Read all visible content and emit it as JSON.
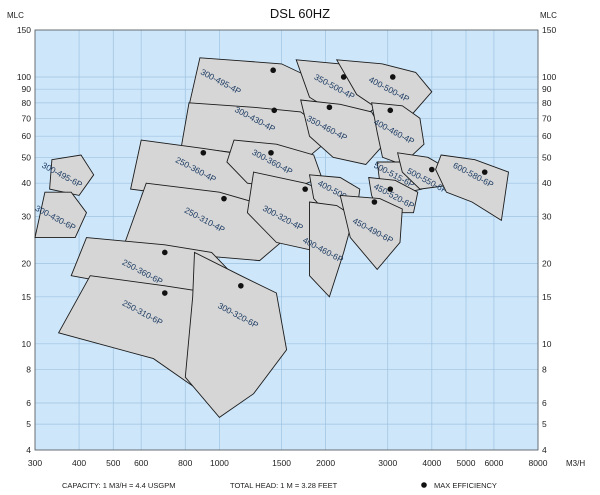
{
  "chart_data": {
    "type": "scatter",
    "title": "DSL 60HZ",
    "y_unit": "MLC",
    "x_unit": "M3/H",
    "x_scale": "log",
    "y_scale": "log",
    "xlim": [
      300,
      8000
    ],
    "ylim": [
      4,
      150
    ],
    "x_ticks": [
      300,
      400,
      500,
      600,
      800,
      1000,
      1500,
      2000,
      3000,
      4000,
      5000,
      6000,
      8000
    ],
    "y_ticks": [
      4,
      5,
      6,
      8,
      10,
      15,
      20,
      30,
      40,
      50,
      60,
      70,
      80,
      90,
      100,
      150
    ],
    "background": "#cde6fa",
    "zone_color": "#d6d6d6",
    "label_color": "#1c3b63",
    "zones": [
      {
        "label": "300-495-4P",
        "max_efficiency": [
          1420,
          106
        ],
        "label_at": [
          1000,
          94
        ],
        "poly": [
          [
            880,
            118
          ],
          [
            1150,
            115
          ],
          [
            1500,
            112
          ],
          [
            1950,
            95
          ],
          [
            2050,
            78
          ],
          [
            1750,
            71
          ],
          [
            1250,
            72
          ],
          [
            820,
            78
          ]
        ]
      },
      {
        "label": "350-500-4P",
        "max_efficiency": [
          2250,
          100
        ],
        "label_at": [
          2100,
          90
        ],
        "poly": [
          [
            1650,
            116
          ],
          [
            2200,
            112
          ],
          [
            2800,
            104
          ],
          [
            3100,
            86
          ],
          [
            2600,
            72
          ],
          [
            2100,
            74
          ],
          [
            1800,
            84
          ]
        ]
      },
      {
        "label": "400-500-4P",
        "max_efficiency": [
          3100,
          100
        ],
        "label_at": [
          3000,
          88
        ],
        "poly": [
          [
            2150,
            116
          ],
          [
            2900,
            112
          ],
          [
            3600,
            104
          ],
          [
            4000,
            88
          ],
          [
            3500,
            72
          ],
          [
            2900,
            74
          ],
          [
            2450,
            86
          ]
        ]
      },
      {
        "label": "300-430-4P",
        "max_efficiency": [
          1430,
          75
        ],
        "label_at": [
          1250,
          68
        ],
        "poly": [
          [
            820,
            80
          ],
          [
            1250,
            77
          ],
          [
            1700,
            74
          ],
          [
            2100,
            60
          ],
          [
            1750,
            49
          ],
          [
            1250,
            51
          ],
          [
            780,
            55
          ]
        ]
      },
      {
        "label": "350-460-4P",
        "max_efficiency": [
          2050,
          77
        ],
        "label_at": [
          2000,
          63
        ],
        "poly": [
          [
            1700,
            82
          ],
          [
            2200,
            79
          ],
          [
            2700,
            74
          ],
          [
            3000,
            58
          ],
          [
            2600,
            47
          ],
          [
            2100,
            50
          ],
          [
            1800,
            60
          ]
        ]
      },
      {
        "label": "400-460-4P",
        "max_efficiency": [
          3050,
          75
        ],
        "label_at": [
          3100,
          61
        ],
        "poly": [
          [
            2700,
            80
          ],
          [
            3300,
            78
          ],
          [
            3700,
            70
          ],
          [
            3800,
            56
          ],
          [
            3300,
            47
          ],
          [
            2900,
            50
          ],
          [
            2800,
            62
          ]
        ]
      },
      {
        "label": "300-495-6P",
        "max_efficiency": null,
        "label_at": [
          355,
          42
        ],
        "poly": [
          [
            335,
            49
          ],
          [
            405,
            51
          ],
          [
            440,
            43
          ],
          [
            400,
            36
          ],
          [
            330,
            38
          ]
        ]
      },
      {
        "label": "250-360-4P",
        "max_efficiency": [
          900,
          52
        ],
        "label_at": [
          850,
          44
        ],
        "poly": [
          [
            600,
            58
          ],
          [
            900,
            54
          ],
          [
            1200,
            51
          ],
          [
            1450,
            42
          ],
          [
            1250,
            34
          ],
          [
            900,
            35
          ],
          [
            560,
            38
          ]
        ]
      },
      {
        "label": "300-360-4P",
        "max_efficiency": [
          1400,
          52
        ],
        "label_at": [
          1400,
          47
        ],
        "poly": [
          [
            1100,
            58
          ],
          [
            1450,
            56
          ],
          [
            1850,
            51
          ],
          [
            1950,
            42
          ],
          [
            1600,
            38
          ],
          [
            1200,
            40
          ],
          [
            1050,
            48
          ]
        ]
      },
      {
        "label": "300-430-6P",
        "max_efficiency": null,
        "label_at": [
          340,
          29
        ],
        "poly": [
          [
            320,
            37
          ],
          [
            380,
            37
          ],
          [
            420,
            31
          ],
          [
            390,
            25
          ],
          [
            300,
            25
          ]
        ]
      },
      {
        "label": "250-310-4P",
        "max_efficiency": [
          1030,
          35
        ],
        "label_at": [
          900,
          28.5
        ],
        "poly": [
          [
            620,
            40
          ],
          [
            1000,
            37
          ],
          [
            1350,
            33
          ],
          [
            1550,
            25
          ],
          [
            1300,
            20.5
          ],
          [
            850,
            21.5
          ],
          [
            540,
            24
          ]
        ]
      },
      {
        "label": "300-320-4P",
        "max_efficiency": [
          1750,
          38
        ],
        "label_at": [
          1500,
          29
        ],
        "poly": [
          [
            1250,
            44
          ],
          [
            1750,
            40
          ],
          [
            2150,
            36
          ],
          [
            2300,
            28
          ],
          [
            1950,
            22
          ],
          [
            1450,
            24
          ],
          [
            1200,
            31
          ]
        ]
      },
      {
        "label": "400-500-6P",
        "max_efficiency": [
          2000,
          32.5
        ],
        "label_at": [
          2150,
          36
        ],
        "poly": [
          [
            1800,
            43
          ],
          [
            2200,
            42
          ],
          [
            2500,
            38
          ],
          [
            2450,
            31
          ],
          [
            2050,
            30
          ],
          [
            1850,
            35
          ]
        ]
      },
      {
        "label": "400-460-6P",
        "max_efficiency": [
          2000,
          32.5
        ],
        "label_at": [
          1950,
          22
        ],
        "poly": [
          [
            1800,
            34
          ],
          [
            2150,
            33
          ],
          [
            2400,
            30
          ],
          [
            2250,
            22
          ],
          [
            2050,
            15
          ],
          [
            1800,
            18
          ]
        ]
      },
      {
        "label": "500-515-6P",
        "max_efficiency": [
          3450,
          46
        ],
        "label_at": [
          3100,
          42
        ],
        "poly": [
          [
            2800,
            48
          ],
          [
            3450,
            48
          ],
          [
            3900,
            45
          ],
          [
            3750,
            38
          ],
          [
            3100,
            36
          ],
          [
            2850,
            40
          ]
        ]
      },
      {
        "label": "500-550-6P",
        "max_efficiency": [
          4000,
          45
        ],
        "label_at": [
          3850,
          40
        ],
        "poly": [
          [
            3200,
            52
          ],
          [
            3900,
            50
          ],
          [
            4350,
            46
          ],
          [
            4300,
            39
          ],
          [
            3700,
            38
          ],
          [
            3300,
            44
          ]
        ]
      },
      {
        "label": "450-520-6P",
        "max_efficiency": [
          3050,
          38
        ],
        "label_at": [
          3100,
          35
        ],
        "poly": [
          [
            2650,
            42
          ],
          [
            3150,
            41
          ],
          [
            3650,
            37
          ],
          [
            3550,
            31
          ],
          [
            2850,
            31
          ],
          [
            2700,
            36
          ]
        ]
      },
      {
        "label": "450-490-6P",
        "max_efficiency": [
          2750,
          34
        ],
        "label_at": [
          2700,
          26
        ],
        "poly": [
          [
            2200,
            36
          ],
          [
            2850,
            35
          ],
          [
            3300,
            32
          ],
          [
            3250,
            24
          ],
          [
            2800,
            19
          ],
          [
            2350,
            25
          ]
        ]
      },
      {
        "label": "600-580-6P",
        "max_efficiency": [
          5650,
          44
        ],
        "label_at": [
          5200,
          42
        ],
        "poly": [
          [
            4250,
            51
          ],
          [
            5300,
            49
          ],
          [
            6600,
            44
          ],
          [
            6300,
            29
          ],
          [
            5200,
            34
          ],
          [
            4400,
            37
          ],
          [
            4100,
            45
          ]
        ]
      },
      {
        "label": "250-360-6P",
        "max_efficiency": [
          700,
          22
        ],
        "label_at": [
          600,
          18.2
        ],
        "poly": [
          [
            420,
            25
          ],
          [
            700,
            23.5
          ],
          [
            950,
            22
          ],
          [
            1100,
            18
          ],
          [
            1000,
            14.5
          ],
          [
            650,
            15.8
          ],
          [
            380,
            18
          ]
        ]
      },
      {
        "label": "250-310-6P",
        "max_efficiency": [
          700,
          15.5
        ],
        "label_at": [
          600,
          12.8
        ],
        "poly": [
          [
            430,
            18
          ],
          [
            700,
            16.5
          ],
          [
            950,
            15.5
          ],
          [
            1000,
            10
          ],
          [
            860,
            6.8
          ],
          [
            650,
            8.8
          ],
          [
            350,
            11
          ]
        ]
      },
      {
        "label": "300-320-6P",
        "max_efficiency": [
          1150,
          16.5
        ],
        "label_at": [
          1120,
          12.5
        ],
        "poly": [
          [
            850,
            22
          ],
          [
            1150,
            18
          ],
          [
            1450,
            15.5
          ],
          [
            1550,
            9.5
          ],
          [
            1250,
            6.5
          ],
          [
            1000,
            5.3
          ],
          [
            800,
            7.5
          ],
          [
            840,
            15
          ]
        ]
      }
    ],
    "footer": {
      "capacity": "CAPACITY: 1 M3/H = 4.4 USGPM",
      "head": "TOTAL HEAD: 1 M = 3.28 FEET",
      "legend": "MAX EFFICIENCY"
    }
  }
}
